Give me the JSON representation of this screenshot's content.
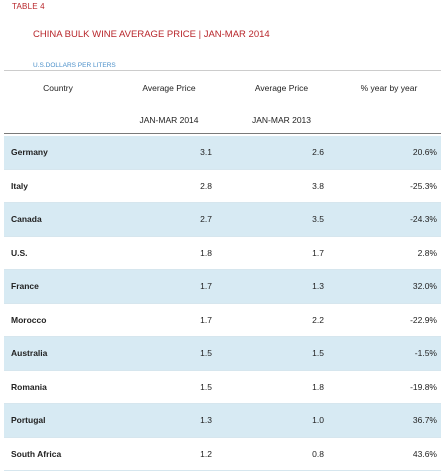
{
  "table_label": "TABLE 4",
  "title": "CHINA BULK WINE AVERAGE PRICE | JAN-MAR 2014",
  "units": "U.S.DOLLARS PER LITERS",
  "headers": {
    "country": "Country",
    "avg_2014": "Average Price",
    "avg_2013": "Average Price",
    "yoy": "% year by year",
    "sub_2014": "JAN-MAR 2014",
    "sub_2013": "JAN-MAR 2013"
  },
  "rows": [
    {
      "country": "Germany",
      "p2014": "3.1",
      "p2013": "2.6",
      "yoy": "20.6%"
    },
    {
      "country": "Italy",
      "p2014": "2.8",
      "p2013": "3.8",
      "yoy": "-25.3%"
    },
    {
      "country": "Canada",
      "p2014": "2.7",
      "p2013": "3.5",
      "yoy": "-24.3%"
    },
    {
      "country": "U.S.",
      "p2014": "1.8",
      "p2013": "1.7",
      "yoy": "2.8%"
    },
    {
      "country": "France",
      "p2014": "1.7",
      "p2013": "1.3",
      "yoy": "32.0%"
    },
    {
      "country": "Morocco",
      "p2014": "1.7",
      "p2013": "2.2",
      "yoy": "-22.9%"
    },
    {
      "country": "Australia",
      "p2014": "1.5",
      "p2013": "1.5",
      "yoy": "-1.5%"
    },
    {
      "country": "Romania",
      "p2014": "1.5",
      "p2013": "1.8",
      "yoy": "-19.8%"
    },
    {
      "country": "Portugal",
      "p2014": "1.3",
      "p2013": "1.0",
      "yoy": "36.7%"
    },
    {
      "country": "South Africa",
      "p2014": "1.2",
      "p2013": "0.8",
      "yoy": "43.6%"
    }
  ],
  "colors": {
    "title": "#b8262b",
    "units": "#4a8fc9",
    "row_shade": "#d7eaf3"
  }
}
